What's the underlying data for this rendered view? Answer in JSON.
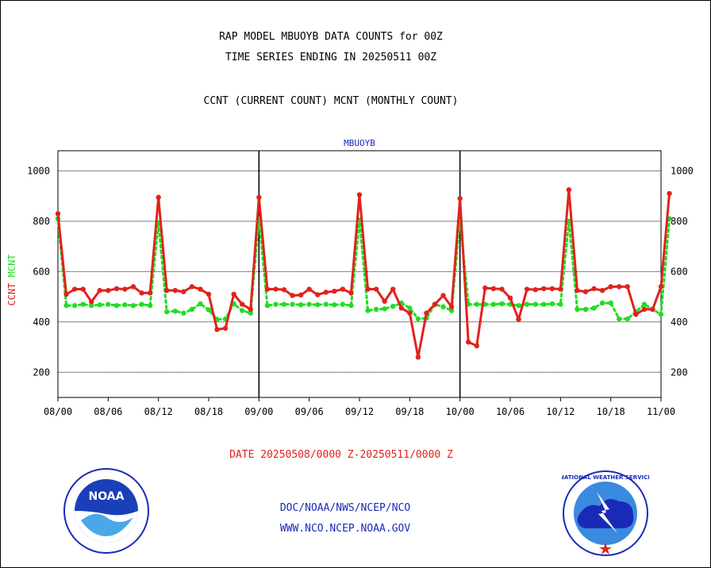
{
  "header": {
    "line1": "RAP MODEL MBUOYB DATA COUNTS for 00Z",
    "line2": "TIME SERIES ENDING IN 20250511 00Z",
    "line3": "CCNT (CURRENT COUNT) MCNT (MONTHLY COUNT)"
  },
  "footer": {
    "date_range": "DATE 20250508/0000 Z-20250511/0000 Z",
    "org_line": "DOC/NOAA/NWS/NCEP/NCO",
    "url_line": "WWW.NCO.NCEP.NOAA.GOV",
    "noaa_logo_text": "NOAA",
    "nws_logo_text": "NATIONAL WEATHER SERVICE"
  },
  "colors": {
    "ccnt": "#e0231c",
    "mcnt": "#22dd22",
    "title_blue": "#1a2ab8",
    "grid": "#000000"
  },
  "chart_data": {
    "type": "line",
    "title": "MBUOYB",
    "ylabel_parts": [
      {
        "text": "CCNT",
        "color": "#e0231c"
      },
      {
        "text": "MCNT",
        "color": "#22dd22"
      }
    ],
    "xlim": [
      0,
      72
    ],
    "ylim": [
      100,
      1080
    ],
    "yticks": [
      200,
      400,
      600,
      800,
      1000
    ],
    "xticks": [
      {
        "x": 0,
        "label": "08/00"
      },
      {
        "x": 6,
        "label": "08/06"
      },
      {
        "x": 12,
        "label": "08/12"
      },
      {
        "x": 18,
        "label": "08/18"
      },
      {
        "x": 24,
        "label": "09/00"
      },
      {
        "x": 30,
        "label": "09/06"
      },
      {
        "x": 36,
        "label": "09/12"
      },
      {
        "x": 42,
        "label": "09/18"
      },
      {
        "x": 48,
        "label": "10/00"
      },
      {
        "x": 54,
        "label": "10/06"
      },
      {
        "x": 60,
        "label": "10/12"
      },
      {
        "x": 66,
        "label": "10/18"
      },
      {
        "x": 72,
        "label": "11/00"
      }
    ],
    "day_dividers": [
      24,
      48
    ],
    "grid": true,
    "series": [
      {
        "name": "CCNT",
        "style": "solid",
        "values": [
          830,
          510,
          530,
          530,
          480,
          525,
          525,
          532,
          530,
          540,
          515,
          515,
          895,
          525,
          525,
          520,
          540,
          530,
          510,
          370,
          375,
          510,
          470,
          450,
          895,
          530,
          530,
          528,
          505,
          507,
          530,
          508,
          518,
          522,
          530,
          515,
          905,
          530,
          530,
          482,
          530,
          455,
          435,
          260,
          435,
          470,
          505,
          460,
          890,
          320,
          305,
          535,
          532,
          530,
          495,
          410,
          530,
          528,
          532,
          532,
          530,
          925,
          525,
          520,
          532,
          525,
          540,
          540,
          540,
          430,
          450,
          450,
          540,
          910
        ]
      },
      {
        "name": "MCNT",
        "style": "dotted",
        "values": [
          810,
          465,
          465,
          470,
          465,
          468,
          470,
          465,
          468,
          465,
          470,
          465,
          795,
          440,
          443,
          435,
          450,
          472,
          448,
          410,
          412,
          472,
          445,
          435,
          810,
          465,
          470,
          470,
          470,
          468,
          470,
          468,
          470,
          468,
          470,
          465,
          805,
          445,
          450,
          452,
          462,
          475,
          455,
          412,
          415,
          470,
          460,
          445,
          810,
          470,
          470,
          470,
          470,
          472,
          470,
          465,
          470,
          470,
          470,
          472,
          470,
          800,
          450,
          450,
          455,
          475,
          475,
          412,
          412,
          440,
          470,
          450,
          430,
          810
        ]
      }
    ]
  }
}
